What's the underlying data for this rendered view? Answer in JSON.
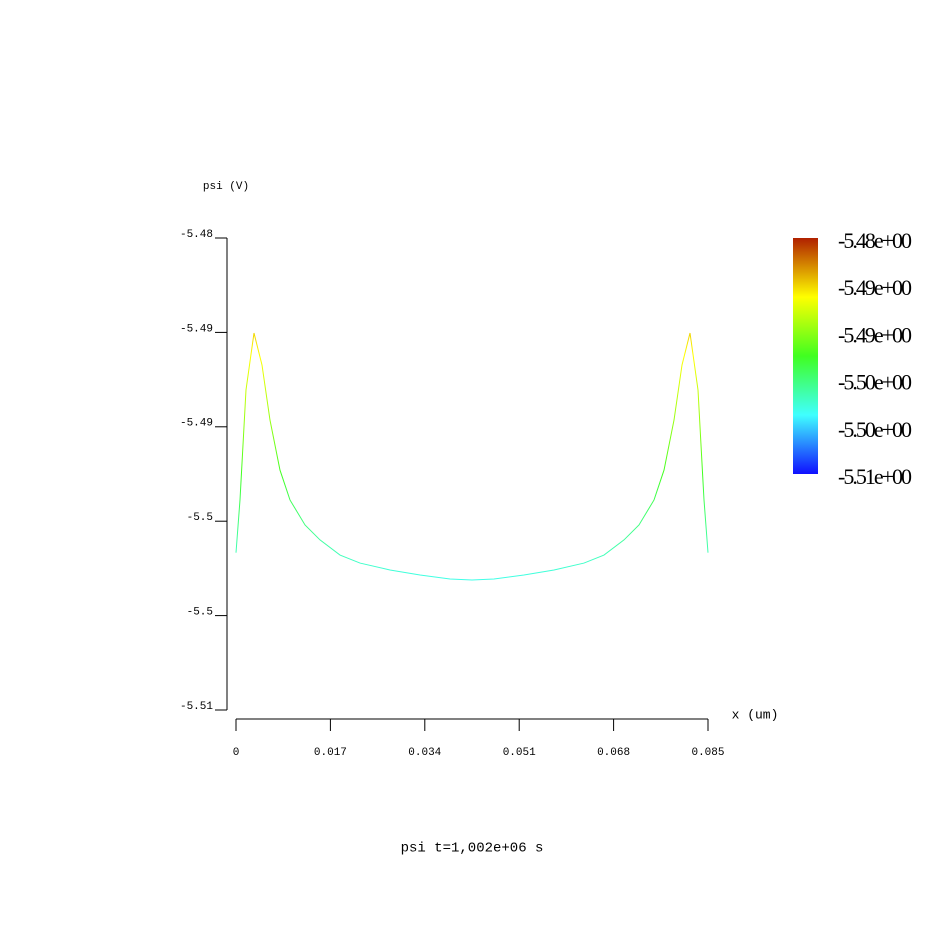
{
  "chart_data": {
    "type": "line",
    "title": "psi t=1,002e+06 s",
    "y_label": "psi (V)",
    "x_label": "x (um)",
    "xlim": [
      0,
      0.085
    ],
    "xticks": [
      0,
      0.017,
      0.034,
      0.051,
      0.068,
      0.085
    ],
    "ylim": [
      -5.51,
      -5.48
    ],
    "yticks": [
      {
        "value": -5.48,
        "label": "-5.48"
      },
      {
        "value": -5.486,
        "label": "-5.49"
      },
      {
        "value": -5.492,
        "label": "-5.49"
      },
      {
        "value": -5.498,
        "label": "-5.5"
      },
      {
        "value": -5.504,
        "label": "-5.5"
      },
      {
        "value": -5.51,
        "label": "-5.51"
      }
    ],
    "colormap": [
      "#1010ff",
      "#40ffff",
      "#40ff20",
      "#ffff00",
      "#b02000"
    ],
    "colorbar_ticks": [
      {
        "value": -5.48,
        "label": "-5.48e+00"
      },
      {
        "value": -5.486,
        "label": "-5.49e+00"
      },
      {
        "value": -5.492,
        "label": "-5.49e+00"
      },
      {
        "value": -5.498,
        "label": "-5.50e+00"
      },
      {
        "value": -5.504,
        "label": "-5.50e+00"
      },
      {
        "value": -5.51,
        "label": "-5.51e+00"
      }
    ],
    "x": [
      0,
      0.00072,
      0.0018,
      0.00324,
      0.00468,
      0.00612,
      0.00792,
      0.00972,
      0.01243,
      0.01513,
      0.01873,
      0.02233,
      0.02773,
      0.03314,
      0.03854,
      0.0425,
      0.04646,
      0.05186,
      0.05727,
      0.06267,
      0.06627,
      0.06987,
      0.07257,
      0.07528,
      0.07708,
      0.07888,
      0.08032,
      0.08176,
      0.0832,
      0.08428,
      0.085
    ],
    "values": [
      -5.5,
      -5.49665,
      -5.48966,
      -5.48604,
      -5.48807,
      -5.49157,
      -5.49475,
      -5.49665,
      -5.49824,
      -5.49919,
      -5.50015,
      -5.50066,
      -5.5011,
      -5.50142,
      -5.50167,
      -5.50174,
      -5.50167,
      -5.50142,
      -5.5011,
      -5.50066,
      -5.50015,
      -5.49919,
      -5.49824,
      -5.49665,
      -5.49475,
      -5.49157,
      -5.48807,
      -5.48604,
      -5.48966,
      -5.49665,
      -5.5
    ]
  }
}
